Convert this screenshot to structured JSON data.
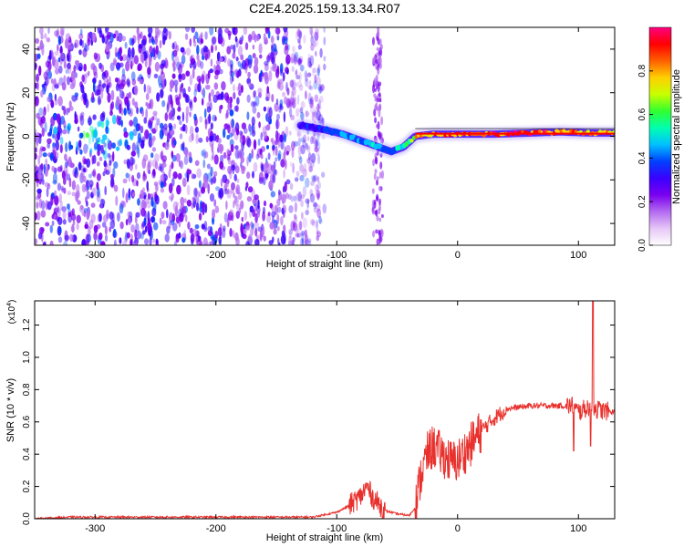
{
  "title": "C2E4.2025.159.13.34.R07",
  "chart_data": [
    {
      "type": "heatmap",
      "xlabel": "Height of straight line (km)",
      "ylabel": "Frequency (Hz)",
      "xlim": [
        -350,
        130
      ],
      "ylim": [
        -50,
        50
      ],
      "x_ticks": [
        -300,
        -200,
        -100,
        0,
        100
      ],
      "y_ticks": [
        -40,
        -20,
        0,
        20,
        40
      ],
      "colorbar": {
        "label": "Normalized spectral amplitude",
        "range": [
          0,
          1
        ],
        "ticks": [
          "0.0",
          "0.2",
          "0.4",
          "0.6",
          "0.8"
        ],
        "tick_values": [
          0.0,
          0.2,
          0.4,
          0.6,
          0.8
        ],
        "colors": [
          "#ffffff",
          "#e6c6f6",
          "#b36bf0",
          "#7a00f0",
          "#3a00ff",
          "#0040ff",
          "#00c0ff",
          "#00ffb0",
          "#30ff30",
          "#c8ff00",
          "#ffd000",
          "#ff6000",
          "#ff0000",
          "#ff0080"
        ]
      },
      "noise_region_x": [
        -350,
        -125
      ],
      "noise_color": "#7a00f0",
      "sparse_stripe_x": [
        -70,
        -62
      ],
      "signal_track": [
        {
          "x": -130,
          "f": 5,
          "amp": 0.35
        },
        {
          "x": -110,
          "f": 3,
          "amp": 0.4
        },
        {
          "x": -95,
          "f": 1,
          "amp": 0.45
        },
        {
          "x": -80,
          "f": -2,
          "amp": 0.48
        },
        {
          "x": -65,
          "f": -5,
          "amp": 0.5
        },
        {
          "x": -55,
          "f": -7,
          "amp": 0.42
        },
        {
          "x": -45,
          "f": -5,
          "amp": 0.55
        },
        {
          "x": -35,
          "f": 0,
          "amp": 0.8
        },
        {
          "x": -20,
          "f": 1,
          "amp": 0.85
        },
        {
          "x": 0,
          "f": 1,
          "amp": 0.9
        },
        {
          "x": 30,
          "f": 1,
          "amp": 0.95
        },
        {
          "x": 60,
          "f": 1.5,
          "amp": 0.95
        },
        {
          "x": 85,
          "f": 2,
          "amp": 0.92
        },
        {
          "x": 110,
          "f": 1.5,
          "amp": 0.85
        },
        {
          "x": 130,
          "f": 1.5,
          "amp": 0.85
        }
      ]
    },
    {
      "type": "line",
      "xlabel": "Height of straight line (km)",
      "ylabel": "SNR (10 * v/v)",
      "y_multiplier": "(x10",
      "y_multiplier_exp": "4",
      "y_multiplier_close": ")",
      "xlim": [
        -350,
        130
      ],
      "ylim": [
        0,
        1.35
      ],
      "x_ticks": [
        -300,
        -200,
        -100,
        0,
        100
      ],
      "y_ticks": [
        "0.0",
        "0.2",
        "0.4",
        "0.6",
        "0.8",
        "1.0",
        "1.2"
      ],
      "y_tick_values": [
        0.0,
        0.2,
        0.4,
        0.6,
        0.8,
        1.0,
        1.2
      ],
      "line_color": "#e8302c",
      "series": [
        {
          "x": [
            -350,
            -320,
            -300,
            -280,
            -250,
            -200,
            -150,
            -120,
            -100,
            -90,
            -80,
            -75,
            -70,
            -60,
            -50,
            -40,
            -35,
            -30,
            -25,
            -20,
            -15,
            -10,
            -5,
            0,
            10,
            20,
            30,
            40,
            60,
            80,
            95,
            100,
            105,
            110,
            115,
            120,
            130
          ],
          "y": [
            0.0,
            0.01,
            0.01,
            0.01,
            0.01,
            0.01,
            0.01,
            0.01,
            0.04,
            0.08,
            0.14,
            0.2,
            0.13,
            0.05,
            0.03,
            0.02,
            0.07,
            0.28,
            0.4,
            0.45,
            0.41,
            0.38,
            0.35,
            0.36,
            0.45,
            0.55,
            0.62,
            0.68,
            0.7,
            0.7,
            0.7,
            0.66,
            0.68,
            0.7,
            0.68,
            0.67,
            0.66
          ]
        }
      ]
    }
  ]
}
